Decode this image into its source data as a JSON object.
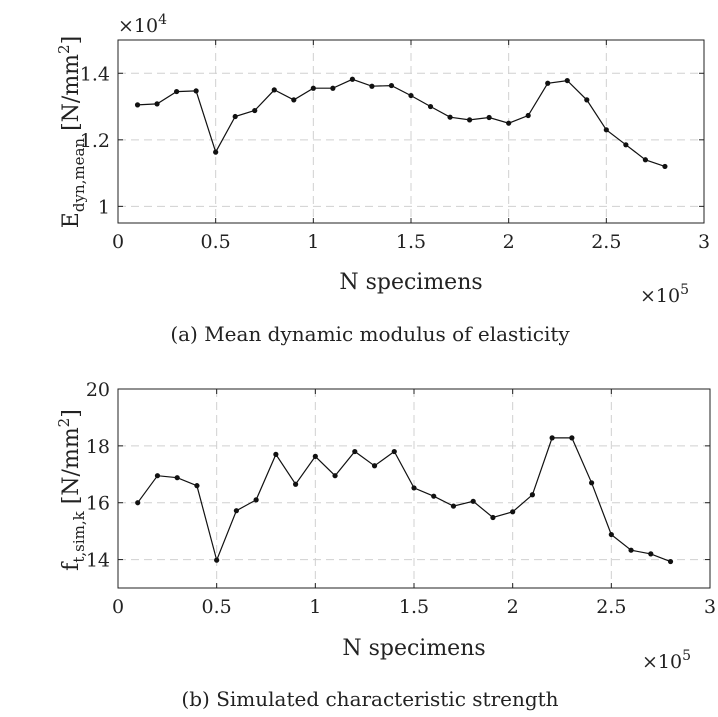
{
  "chart_data": [
    {
      "type": "line",
      "caption": "(a) Mean dynamic modulus of elasticity",
      "xlabel": "N specimens",
      "ylabel": {
        "main": "E",
        "sub": "dyn,mean",
        "unit_pre": "[N/mm",
        "unit_sup": "2",
        "unit_post": "]"
      },
      "x_multiplier": {
        "base": "×10",
        "exp": "5"
      },
      "y_multiplier": {
        "base": "×10",
        "exp": "4"
      },
      "xlim": [
        0,
        3
      ],
      "ylim": [
        0.95,
        1.5
      ],
      "xticks": [
        0,
        0.5,
        1,
        1.5,
        2,
        2.5,
        3
      ],
      "xtick_labels": [
        "0",
        "0.5",
        "1",
        "1.5",
        "2",
        "2.5",
        "3"
      ],
      "yticks": [
        1.0,
        1.2,
        1.4
      ],
      "ytick_labels": [
        "1",
        "1.2",
        "1.4"
      ],
      "grid": true,
      "x": [
        0.1,
        0.2,
        0.3,
        0.4,
        0.5,
        0.6,
        0.7,
        0.8,
        0.9,
        1.0,
        1.1,
        1.2,
        1.3,
        1.4,
        1.5,
        1.6,
        1.7,
        1.8,
        1.9,
        2.0,
        2.1,
        2.2,
        2.3,
        2.4,
        2.5,
        2.6,
        2.7,
        2.8
      ],
      "y": [
        1.305,
        1.308,
        1.345,
        1.347,
        1.163,
        1.27,
        1.288,
        1.35,
        1.32,
        1.355,
        1.355,
        1.382,
        1.361,
        1.363,
        1.333,
        1.3,
        1.268,
        1.26,
        1.267,
        1.25,
        1.273,
        1.37,
        1.378,
        1.32,
        1.23,
        1.185,
        1.14,
        1.12
      ]
    },
    {
      "type": "line",
      "caption": "(b) Simulated characteristic strength",
      "xlabel": "N specimens",
      "ylabel": {
        "main": "f",
        "sub": "t,sim,k",
        "unit_pre": "[N/mm",
        "unit_sup": "2",
        "unit_post": "]"
      },
      "x_multiplier": {
        "base": "×10",
        "exp": "5"
      },
      "xlim": [
        0,
        3
      ],
      "ylim": [
        13,
        20
      ],
      "xticks": [
        0,
        0.5,
        1,
        1.5,
        2,
        2.5,
        3
      ],
      "xtick_labels": [
        "0",
        "0.5",
        "1",
        "1.5",
        "2",
        "2.5",
        "3"
      ],
      "yticks": [
        14,
        16,
        18,
        20
      ],
      "ytick_labels": [
        "14",
        "16",
        "18",
        "20"
      ],
      "grid": true,
      "x": [
        0.1,
        0.2,
        0.3,
        0.4,
        0.5,
        0.6,
        0.7,
        0.8,
        0.9,
        1.0,
        1.1,
        1.2,
        1.3,
        1.4,
        1.5,
        1.6,
        1.7,
        1.8,
        1.9,
        2.0,
        2.1,
        2.2,
        2.3,
        2.4,
        2.5,
        2.6,
        2.7,
        2.8
      ],
      "y": [
        16.0,
        16.95,
        16.88,
        16.6,
        13.98,
        15.72,
        16.1,
        17.7,
        16.65,
        17.63,
        16.95,
        17.8,
        17.3,
        17.8,
        16.52,
        16.23,
        15.88,
        16.05,
        15.48,
        15.68,
        16.28,
        18.28,
        18.28,
        16.7,
        14.88,
        14.33,
        14.2,
        13.93
      ]
    }
  ]
}
